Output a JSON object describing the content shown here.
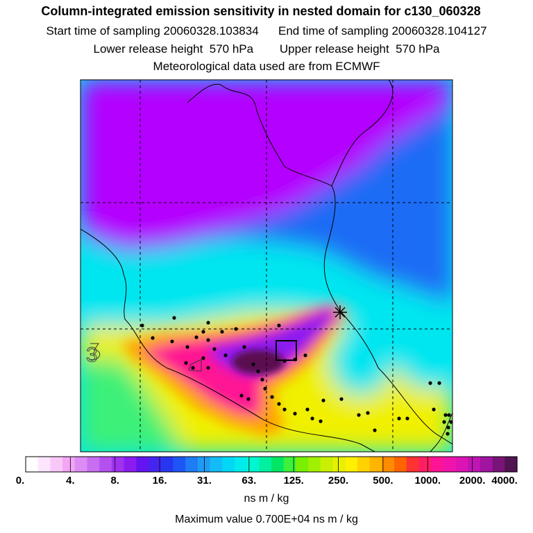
{
  "header": {
    "title": "Column-integrated emission sensitivity in nested domain for c130_060328",
    "line2": "Start time of sampling 20060328.103834      End time of sampling 20060328.104127",
    "line3": "Lower release height  570 hPa        Upper release height  570 hPa",
    "line4": "Meteorological data used are from ECMWF"
  },
  "map": {
    "contour_annotation": "3",
    "colors": {
      "violet": "#b400ff",
      "purple": "#8a1cf0",
      "blue": "#1e6cf5",
      "cyan": "#00e6f0",
      "green": "#3cf078",
      "yellow": "#f0f000",
      "orange": "#ffa000",
      "magenta": "#ff1493",
      "dark_purple": "#5a1050"
    }
  },
  "colorbar": {
    "labels": [
      "0.",
      "4.",
      "8.",
      "16.",
      "31.",
      "63.",
      "125.",
      "250.",
      "500.",
      "1000.",
      "2000.",
      "4000."
    ],
    "colors": [
      "#ffffff",
      "#fde6fd",
      "#f9c8f9",
      "#f2a6f4",
      "#dc8cf5",
      "#c86ef0",
      "#b450f0",
      "#a032f0",
      "#8a1cf0",
      "#6414f0",
      "#4624f0",
      "#2836f0",
      "#1e56f5",
      "#1e7cf5",
      "#1e9cf5",
      "#14bcf5",
      "#00d7f5",
      "#00ebeb",
      "#00f5d2",
      "#00f0a0",
      "#00e664",
      "#3cf03c",
      "#78f000",
      "#a0f000",
      "#c8f000",
      "#e6f000",
      "#fff000",
      "#ffd200",
      "#ffb400",
      "#ff8c00",
      "#ff6400",
      "#ff3232",
      "#ff1e64",
      "#ff1496",
      "#f014aa",
      "#dc14b4",
      "#c014b4",
      "#a014a0",
      "#781478",
      "#501450"
    ],
    "units": "ns m / kg",
    "max_value": "Maximum value  0.700E+04 ns m / kg"
  }
}
